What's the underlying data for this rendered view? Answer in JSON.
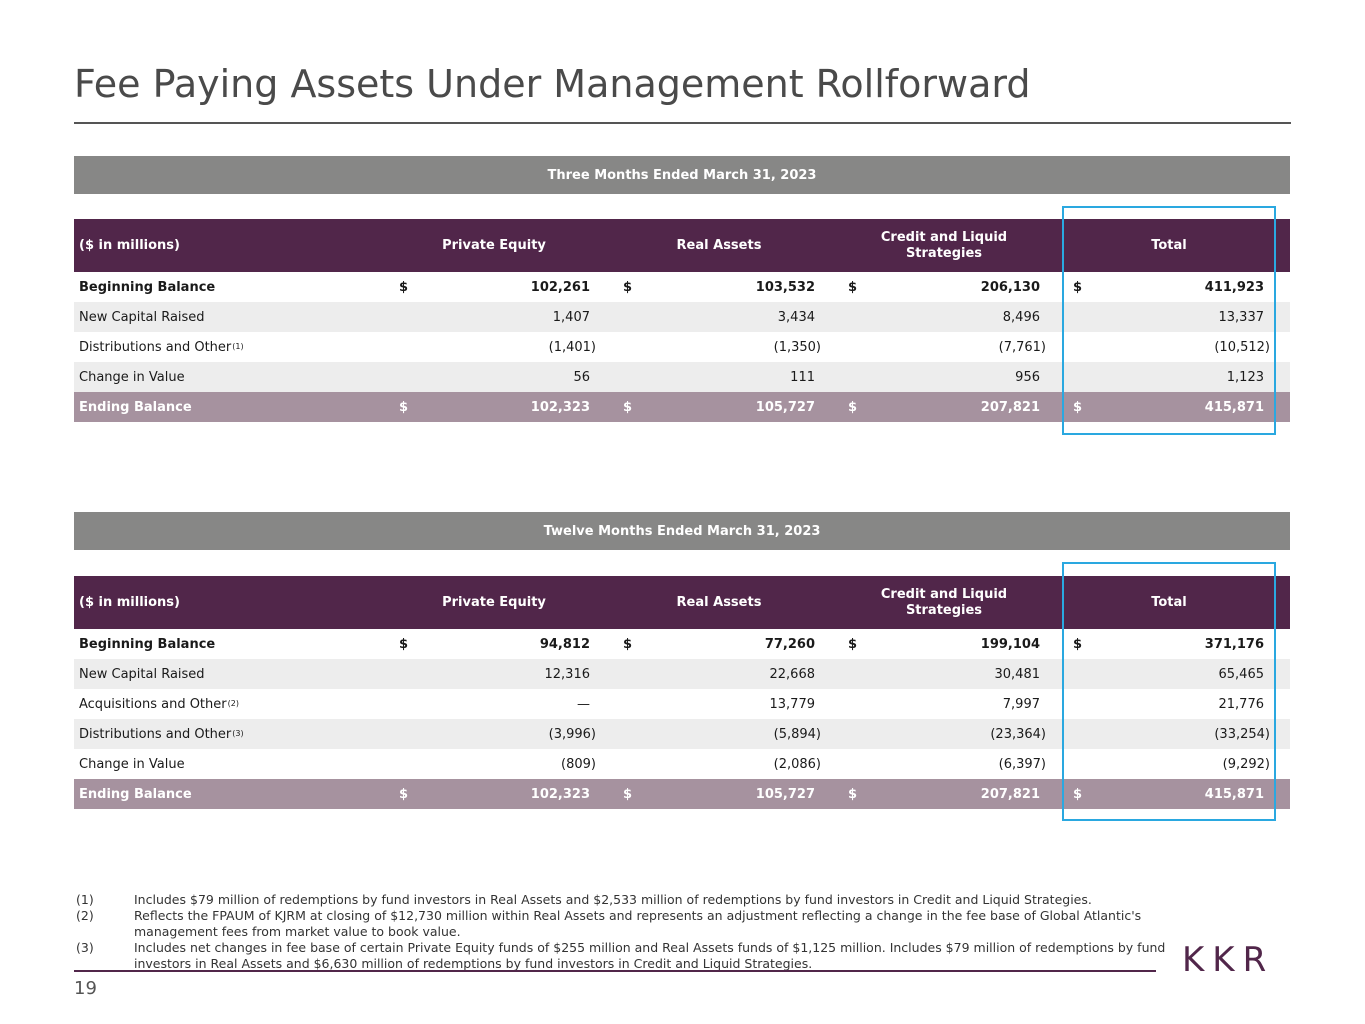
{
  "title": "Fee Paying Assets Under Management Rollforward",
  "page_number": "19",
  "logo_text": "KKR",
  "columns": {
    "label": "($ in millions)",
    "private_equity": "Private Equity",
    "real_assets": "Real Assets",
    "credit_line1": "Credit and Liquid",
    "credit_line2": "Strategies",
    "total": "Total"
  },
  "currency": "$",
  "three_months": {
    "period": "Three Months Ended March 31, 2023",
    "rows": [
      {
        "label": "Beginning Balance",
        "sup": "",
        "pe": "102,261",
        "ra": "103,532",
        "cl": "206,130",
        "total": "411,923"
      },
      {
        "label": "New Capital Raised",
        "sup": "",
        "pe": "1,407",
        "ra": "3,434",
        "cl": "8,496",
        "total": "13,337"
      },
      {
        "label": "Distributions and Other",
        "sup": "(1)",
        "pe": "(1,401)",
        "ra": "(1,350)",
        "cl": "(7,761)",
        "total": "(10,512)"
      },
      {
        "label": "Change in Value",
        "sup": "",
        "pe": "56",
        "ra": "111",
        "cl": "956",
        "total": "1,123"
      },
      {
        "label": "Ending Balance",
        "sup": "",
        "pe": "102,323",
        "ra": "105,727",
        "cl": "207,821",
        "total": "415,871"
      }
    ]
  },
  "twelve_months": {
    "period": "Twelve Months Ended March 31, 2023",
    "rows": [
      {
        "label": "Beginning Balance",
        "sup": "",
        "pe": "94,812",
        "ra": "77,260",
        "cl": "199,104",
        "total": "371,176"
      },
      {
        "label": "New Capital Raised",
        "sup": "",
        "pe": "12,316",
        "ra": "22,668",
        "cl": "30,481",
        "total": "65,465"
      },
      {
        "label": "Acquisitions and Other",
        "sup": "(2)",
        "pe": "—",
        "ra": "13,779",
        "cl": "7,997",
        "total": "21,776"
      },
      {
        "label": "Distributions and Other",
        "sup": "(3)",
        "pe": "(3,996)",
        "ra": "(5,894)",
        "cl": "(23,364)",
        "total": "(33,254)"
      },
      {
        "label": "Change in Value",
        "sup": "",
        "pe": "(809)",
        "ra": "(2,086)",
        "cl": "(6,397)",
        "total": "(9,292)"
      },
      {
        "label": "Ending Balance",
        "sup": "",
        "pe": "102,323",
        "ra": "105,727",
        "cl": "207,821",
        "total": "415,871"
      }
    ]
  },
  "footnotes": [
    {
      "num": "(1)",
      "text": "Includes $79 million of redemptions by fund investors in Real Assets and $2,533 million of redemptions by fund investors in Credit and Liquid Strategies."
    },
    {
      "num": "(2)",
      "text": "Reflects the FPAUM of KJRM at closing of $12,730 million within Real Assets and represents an adjustment reflecting a change in the fee base of Global Atlantic's management fees from market value to book value."
    },
    {
      "num": "(3)",
      "text": "Includes net changes in fee base of certain Private Equity funds of $255 million and Real Assets funds of $1,125 million. Includes $79 million of redemptions by fund investors in Real Assets and $6,630 million of redemptions by fund investors in Credit and Liquid Strategies."
    }
  ],
  "highlight_color": "#2aa8e0",
  "brand_color": "#51264a"
}
